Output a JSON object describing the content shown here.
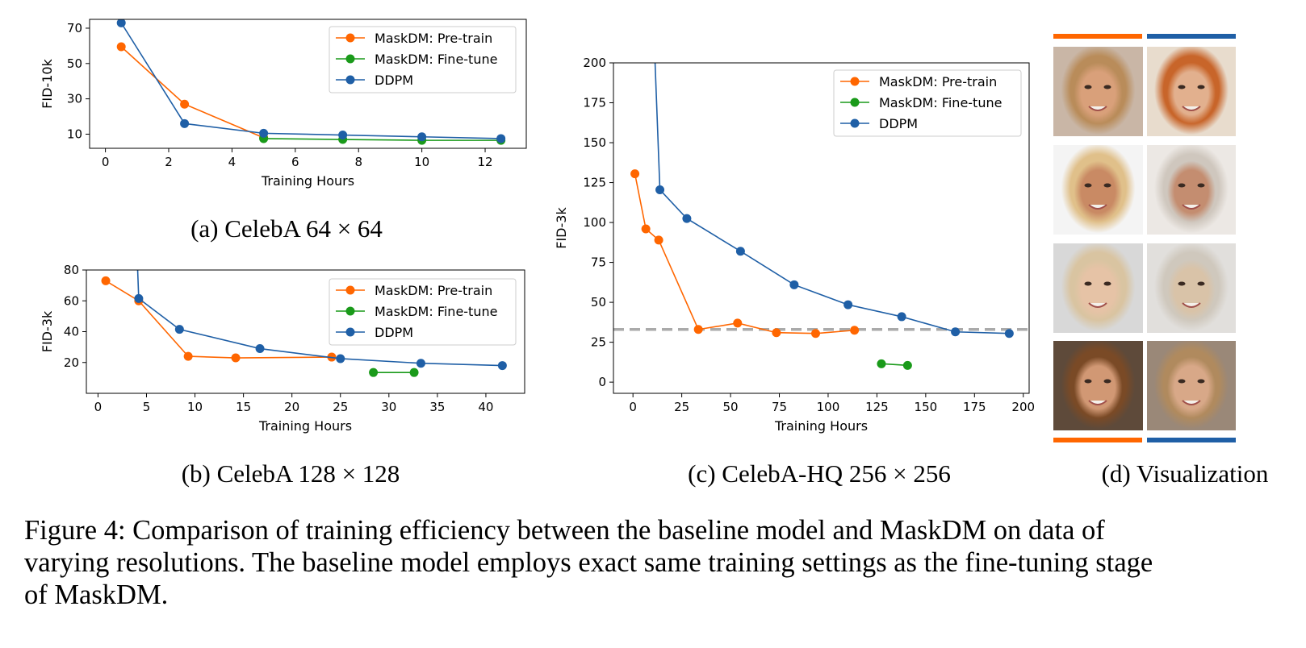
{
  "colors": {
    "pretrain": "#ff6600",
    "finetune": "#1a9a1a",
    "ddpm": "#1f5fa6",
    "reference": "#aaaaaa",
    "frame": "#000000"
  },
  "legend": {
    "pretrain": "MaskDM: Pre-train",
    "finetune": "MaskDM: Fine-tune",
    "ddpm": "DDPM"
  },
  "charts": [
    {
      "key": "a",
      "type": "line",
      "xlabel": "Training Hours",
      "ylabel": "FID-10k",
      "xlim": [
        -0.5,
        13.3
      ],
      "ylim": [
        2,
        75
      ],
      "xticks": [
        0,
        2,
        4,
        6,
        8,
        10,
        12
      ],
      "yticks": [
        10,
        30,
        50,
        70
      ],
      "legend_position": "upper-right",
      "series": [
        {
          "name": "MaskDM: Pre-train",
          "key": "pretrain",
          "x": [
            0.5,
            2.5,
            5
          ],
          "y": [
            59.5,
            27,
            8
          ]
        },
        {
          "name": "MaskDM: Fine-tune",
          "key": "finetune",
          "x": [
            5,
            7.5,
            10,
            12.5
          ],
          "y": [
            7.5,
            7,
            6.5,
            6.5
          ]
        },
        {
          "name": "DDPM",
          "key": "ddpm",
          "x": [
            0.5,
            2.5,
            5,
            7.5,
            10,
            12.5
          ],
          "y": [
            73,
            16,
            10.5,
            9.5,
            8.5,
            7.5
          ]
        }
      ]
    },
    {
      "key": "b",
      "type": "line",
      "xlabel": "Training Hours",
      "ylabel": "FID-3k",
      "xlim": [
        -1.2,
        44
      ],
      "ylim": [
        0,
        80
      ],
      "xticks": [
        0,
        5,
        10,
        15,
        20,
        25,
        30,
        35,
        40
      ],
      "yticks": [
        20,
        40,
        60,
        80
      ],
      "legend_position": "upper-right",
      "series": [
        {
          "name": "MaskDM: Pre-train",
          "key": "pretrain",
          "x": [
            0.8,
            4.2,
            9.3,
            14.2,
            24.1
          ],
          "y": [
            73,
            60,
            24,
            23,
            23.5
          ]
        },
        {
          "name": "MaskDM: Fine-tune",
          "key": "finetune",
          "x": [
            28.4,
            32.6
          ],
          "y": [
            13.5,
            13.5
          ]
        },
        {
          "name": "DDPM",
          "key": "ddpm",
          "x": [
            4.2,
            8.4,
            16.7,
            25,
            33.3,
            41.7
          ],
          "y": [
            61.5,
            41.5,
            29,
            22.5,
            19.5,
            18
          ]
        }
      ],
      "ddpm_offscale_start": {
        "x": 4.0,
        "y": 95
      }
    },
    {
      "key": "c",
      "type": "line",
      "xlabel": "Training Hours",
      "ylabel": "FID-3k",
      "xlim": [
        -10,
        203
      ],
      "ylim": [
        -7,
        200
      ],
      "xticks": [
        0,
        25,
        50,
        75,
        100,
        125,
        150,
        175,
        200
      ],
      "yticks": [
        0,
        25,
        50,
        75,
        100,
        125,
        150,
        175,
        200
      ],
      "legend_position": "upper-right",
      "reference_line_y": 33,
      "series": [
        {
          "name": "MaskDM: Pre-train",
          "key": "pretrain",
          "x": [
            1,
            6.6,
            13.2,
            33.5,
            53.6,
            73.5,
            93.6,
            113.5
          ],
          "y": [
            130.5,
            96,
            89,
            33,
            37,
            31,
            30.5,
            32.5
          ]
        },
        {
          "name": "MaskDM: Fine-tune",
          "key": "finetune",
          "x": [
            127.3,
            140.7
          ],
          "y": [
            11.5,
            10.5
          ]
        },
        {
          "name": "DDPM",
          "key": "ddpm",
          "x": [
            13.8,
            27.6,
            55.1,
            82.6,
            110.2,
            137.7,
            165.2,
            192.8
          ],
          "y": [
            120.5,
            102.5,
            82,
            61,
            48.5,
            41,
            31.5,
            30.5
          ]
        }
      ],
      "ddpm_offscale_start": {
        "x": 10.4,
        "y": 230
      }
    }
  ],
  "captions": {
    "a": "(a) CelebA 64 × 64",
    "b": "(b) CelebA 128 × 128",
    "c": "(c) CelebA-HQ 256 × 256",
    "d": "(d) Visualization"
  },
  "visualization": {
    "left_column_color": "#ff6600",
    "right_column_color": "#1f5fa6",
    "rows": [
      {
        "left_hair": "#b98c5a",
        "left_skin": "#d9a07a",
        "left_bg": "#c9b6a6",
        "right_hair": "#c8652a",
        "right_skin": "#e2b08e",
        "right_bg": "#e8dccd"
      },
      {
        "left_hair": "#e0c08a",
        "left_skin": "#c98a64",
        "left_bg": "#f4f4f4",
        "right_hair": "#cfc7be",
        "right_skin": "#c48d70",
        "right_bg": "#ece8e4"
      },
      {
        "left_hair": "#d9c4a1",
        "left_skin": "#e6c3a6",
        "left_bg": "#d8d8d8",
        "right_hair": "#cfc8bd",
        "right_skin": "#d9c3a8",
        "right_bg": "#e1dfdc"
      },
      {
        "left_hair": "#7a4a26",
        "left_skin": "#d19874",
        "left_bg": "#5e4a3a",
        "right_hair": "#b08a5e",
        "right_skin": "#d8a888",
        "right_bg": "#9a8878"
      }
    ]
  },
  "figure_caption": [
    "Figure 4: Comparison of training efficiency between the baseline model and MaskDM on data of",
    "varying resolutions. The baseline model employs exact same training settings as the fine-tuning stage",
    "of MaskDM."
  ]
}
